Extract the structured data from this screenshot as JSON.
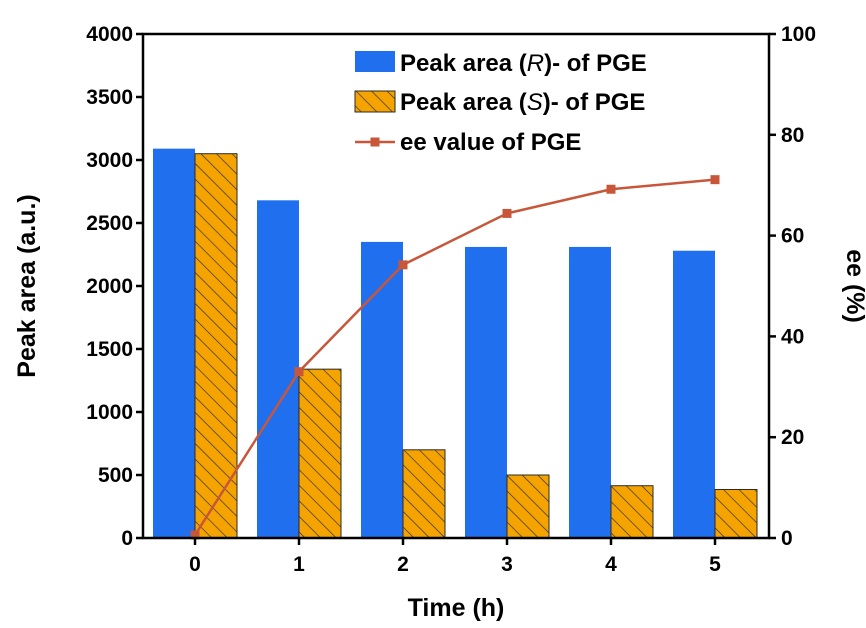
{
  "chart_data": {
    "type": "bar",
    "categories": [
      "0",
      "1",
      "2",
      "3",
      "4",
      "5"
    ],
    "xlabel": "Time (h)",
    "ylabel": "Peak area (a.u.)",
    "ylabel_right": "ee (%)",
    "ylim": [
      0,
      4000
    ],
    "ylim_right": [
      0,
      100
    ],
    "yticks": [
      "0",
      "500",
      "1000",
      "1500",
      "2000",
      "2500",
      "3000",
      "3500",
      "4000"
    ],
    "yticks_right": [
      "0",
      "20",
      "40",
      "60",
      "80",
      "100"
    ],
    "grid": false,
    "legend_position": "top-right",
    "legend": {
      "r": {
        "prefix": "Peak area (",
        "italic": "R",
        "suffix": ")- of PGE"
      },
      "s": {
        "prefix": "Peak area (",
        "italic": "S",
        "suffix": ")- of PGE"
      },
      "ee": "ee value of PGE"
    },
    "series": [
      {
        "name": "Peak area (R)- of PGE",
        "type": "bar",
        "axis": "left",
        "color": "#1f6fef",
        "values": [
          3090,
          2680,
          2350,
          2310,
          2310,
          2280
        ]
      },
      {
        "name": "Peak area (S)- of PGE",
        "type": "bar",
        "axis": "left",
        "color": "#f5a300",
        "pattern": "hatch",
        "values": [
          3050,
          1340,
          700,
          500,
          415,
          385
        ]
      },
      {
        "name": "ee value of PGE",
        "type": "line",
        "axis": "right",
        "color": "#c8573a",
        "marker": "square",
        "values": [
          0.6,
          33,
          54.2,
          64.4,
          69.2,
          71.1
        ]
      }
    ]
  }
}
